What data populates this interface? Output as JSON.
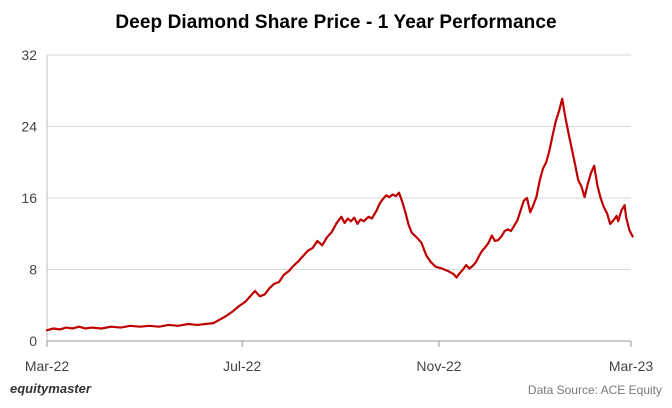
{
  "chart_data": {
    "type": "line",
    "title": "Deep Diamond Share Price - 1 Year Performance",
    "xlabel": "",
    "ylabel": "",
    "ylim": [
      0,
      32
    ],
    "yticks": [
      0,
      8,
      16,
      24,
      32
    ],
    "xlim": [
      "2022-03-01",
      "2023-03-01"
    ],
    "xticks": [
      {
        "label": "Mar-22",
        "date": "2022-03-01"
      },
      {
        "label": "Jul-22",
        "date": "2022-07-01"
      },
      {
        "label": "Nov-22",
        "date": "2022-11-01"
      },
      {
        "label": "Mar-23",
        "date": "2023-03-01"
      }
    ],
    "grid": "horizontal",
    "series": [
      {
        "color": "#c00000",
        "points": [
          [
            "2022-03-01",
            1.2
          ],
          [
            "2022-03-05",
            1.4
          ],
          [
            "2022-03-09",
            1.3
          ],
          [
            "2022-03-13",
            1.5
          ],
          [
            "2022-03-17",
            1.4
          ],
          [
            "2022-03-21",
            1.6
          ],
          [
            "2022-03-25",
            1.4
          ],
          [
            "2022-03-29",
            1.5
          ],
          [
            "2022-04-04",
            1.4
          ],
          [
            "2022-04-10",
            1.6
          ],
          [
            "2022-04-16",
            1.5
          ],
          [
            "2022-04-22",
            1.7
          ],
          [
            "2022-04-28",
            1.6
          ],
          [
            "2022-05-04",
            1.7
          ],
          [
            "2022-05-10",
            1.6
          ],
          [
            "2022-05-16",
            1.8
          ],
          [
            "2022-05-22",
            1.7
          ],
          [
            "2022-05-28",
            1.9
          ],
          [
            "2022-06-03",
            1.8
          ],
          [
            "2022-06-08",
            1.9
          ],
          [
            "2022-06-13",
            2.0
          ],
          [
            "2022-06-17",
            2.4
          ],
          [
            "2022-06-21",
            2.8
          ],
          [
            "2022-06-25",
            3.3
          ],
          [
            "2022-06-29",
            3.9
          ],
          [
            "2022-07-03",
            4.4
          ],
          [
            "2022-07-06",
            5.0
          ],
          [
            "2022-07-09",
            5.6
          ],
          [
            "2022-07-12",
            5.0
          ],
          [
            "2022-07-15",
            5.2
          ],
          [
            "2022-07-18",
            5.9
          ],
          [
            "2022-07-21",
            6.4
          ],
          [
            "2022-07-24",
            6.6
          ],
          [
            "2022-07-27",
            7.4
          ],
          [
            "2022-07-30",
            7.8
          ],
          [
            "2022-08-02",
            8.4
          ],
          [
            "2022-08-05",
            8.9
          ],
          [
            "2022-08-08",
            9.5
          ],
          [
            "2022-08-11",
            10.1
          ],
          [
            "2022-08-14",
            10.4
          ],
          [
            "2022-08-17",
            11.2
          ],
          [
            "2022-08-20",
            10.7
          ],
          [
            "2022-08-23",
            11.6
          ],
          [
            "2022-08-26",
            12.2
          ],
          [
            "2022-08-29",
            13.2
          ],
          [
            "2022-09-01",
            13.9
          ],
          [
            "2022-09-03",
            13.2
          ],
          [
            "2022-09-05",
            13.7
          ],
          [
            "2022-09-07",
            13.4
          ],
          [
            "2022-09-09",
            13.8
          ],
          [
            "2022-09-11",
            13.1
          ],
          [
            "2022-09-13",
            13.6
          ],
          [
            "2022-09-15",
            13.4
          ],
          [
            "2022-09-18",
            13.9
          ],
          [
            "2022-09-20",
            13.7
          ],
          [
            "2022-09-23",
            14.6
          ],
          [
            "2022-09-25",
            15.4
          ],
          [
            "2022-09-27",
            15.9
          ],
          [
            "2022-09-29",
            16.3
          ],
          [
            "2022-10-01",
            16.1
          ],
          [
            "2022-10-03",
            16.4
          ],
          [
            "2022-10-05",
            16.2
          ],
          [
            "2022-10-07",
            16.6
          ],
          [
            "2022-10-09",
            15.6
          ],
          [
            "2022-10-11",
            14.4
          ],
          [
            "2022-10-13",
            13.0
          ],
          [
            "2022-10-15",
            12.1
          ],
          [
            "2022-10-18",
            11.6
          ],
          [
            "2022-10-21",
            11.0
          ],
          [
            "2022-10-24",
            9.6
          ],
          [
            "2022-10-27",
            8.8
          ],
          [
            "2022-10-30",
            8.3
          ],
          [
            "2022-11-03",
            8.1
          ],
          [
            "2022-11-07",
            7.8
          ],
          [
            "2022-11-10",
            7.5
          ],
          [
            "2022-11-12",
            7.1
          ],
          [
            "2022-11-14",
            7.6
          ],
          [
            "2022-11-16",
            8.0
          ],
          [
            "2022-11-18",
            8.5
          ],
          [
            "2022-11-20",
            8.1
          ],
          [
            "2022-11-22",
            8.4
          ],
          [
            "2022-11-24",
            8.8
          ],
          [
            "2022-11-26",
            9.5
          ],
          [
            "2022-11-28",
            10.1
          ],
          [
            "2022-11-30",
            10.5
          ],
          [
            "2022-12-02",
            11.0
          ],
          [
            "2022-12-04",
            11.8
          ],
          [
            "2022-12-06",
            11.2
          ],
          [
            "2022-12-08",
            11.3
          ],
          [
            "2022-12-10",
            11.7
          ],
          [
            "2022-12-12",
            12.3
          ],
          [
            "2022-12-14",
            12.5
          ],
          [
            "2022-12-16",
            12.3
          ],
          [
            "2022-12-18",
            12.9
          ],
          [
            "2022-12-20",
            13.5
          ],
          [
            "2022-12-22",
            14.6
          ],
          [
            "2022-12-24",
            15.7
          ],
          [
            "2022-12-26",
            16.0
          ],
          [
            "2022-12-28",
            14.4
          ],
          [
            "2022-12-30",
            15.2
          ],
          [
            "2023-01-01",
            16.2
          ],
          [
            "2023-01-03",
            18.0
          ],
          [
            "2023-01-05",
            19.3
          ],
          [
            "2023-01-07",
            20.0
          ],
          [
            "2023-01-09",
            21.3
          ],
          [
            "2023-01-11",
            23.0
          ],
          [
            "2023-01-13",
            24.6
          ],
          [
            "2023-01-15",
            25.7
          ],
          [
            "2023-01-17",
            27.1
          ],
          [
            "2023-01-19",
            25.0
          ],
          [
            "2023-01-21",
            23.2
          ],
          [
            "2023-01-23",
            21.5
          ],
          [
            "2023-01-25",
            19.8
          ],
          [
            "2023-01-27",
            18.0
          ],
          [
            "2023-01-29",
            17.3
          ],
          [
            "2023-01-31",
            16.1
          ],
          [
            "2023-02-02",
            17.6
          ],
          [
            "2023-02-04",
            18.8
          ],
          [
            "2023-02-06",
            19.6
          ],
          [
            "2023-02-08",
            17.4
          ],
          [
            "2023-02-10",
            16.0
          ],
          [
            "2023-02-12",
            15.0
          ],
          [
            "2023-02-14",
            14.3
          ],
          [
            "2023-02-16",
            13.1
          ],
          [
            "2023-02-18",
            13.5
          ],
          [
            "2023-02-20",
            14.0
          ],
          [
            "2023-02-21",
            13.4
          ],
          [
            "2023-02-23",
            14.6
          ],
          [
            "2023-02-25",
            15.2
          ],
          [
            "2023-02-26",
            13.8
          ],
          [
            "2023-02-28",
            12.4
          ],
          [
            "2023-03-02",
            11.7
          ]
        ]
      }
    ]
  },
  "brand": "equitymaster",
  "source": "Data Source: ACE Equity"
}
